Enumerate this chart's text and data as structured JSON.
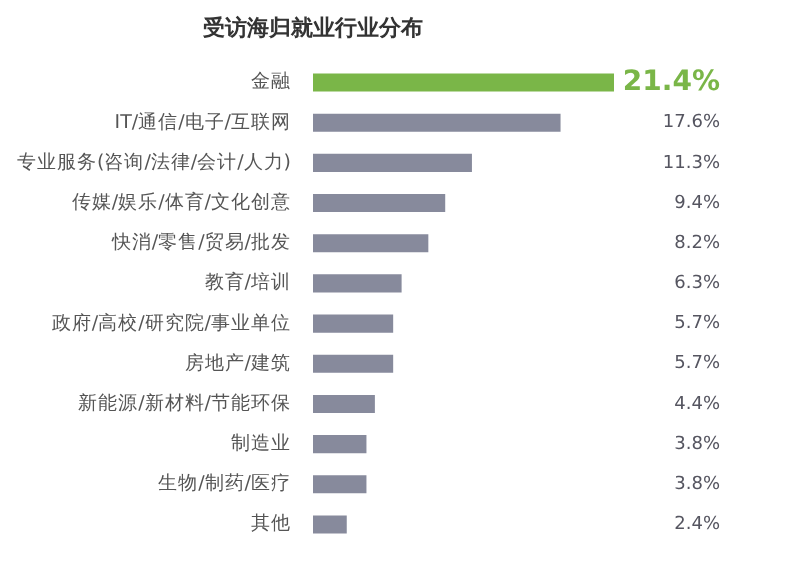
{
  "chart_data": {
    "type": "bar",
    "orientation": "horizontal",
    "title": "受访海归就业行业分布",
    "categories": [
      "金融",
      "IT/通信/电子/互联网",
      "专业服务(咨询/法律/会计/人力)",
      "传媒/娱乐/体育/文化创意",
      "快消/零售/贸易/批发",
      "教育/培训",
      "政府/高校/研究院/事业单位",
      "房地产/建筑",
      "新能源/新材料/节能环保",
      "制造业",
      "生物/制药/医疗",
      "其他"
    ],
    "values": [
      21.4,
      17.6,
      11.3,
      9.4,
      8.2,
      6.3,
      5.7,
      5.7,
      4.4,
      3.8,
      3.8,
      2.4
    ],
    "value_labels": [
      "21.4%",
      "17.6%",
      "11.3%",
      "9.4%",
      "8.2%",
      "6.3%",
      "5.7%",
      "5.7%",
      "4.4%",
      "3.8%",
      "3.8%",
      "2.4%"
    ],
    "colors": [
      "#7ab648",
      "#878a9c",
      "#878a9c",
      "#878a9c",
      "#878a9c",
      "#878a9c",
      "#878a9c",
      "#878a9c",
      "#878a9c",
      "#878a9c",
      "#878a9c",
      "#878a9c"
    ],
    "legend": false
  }
}
